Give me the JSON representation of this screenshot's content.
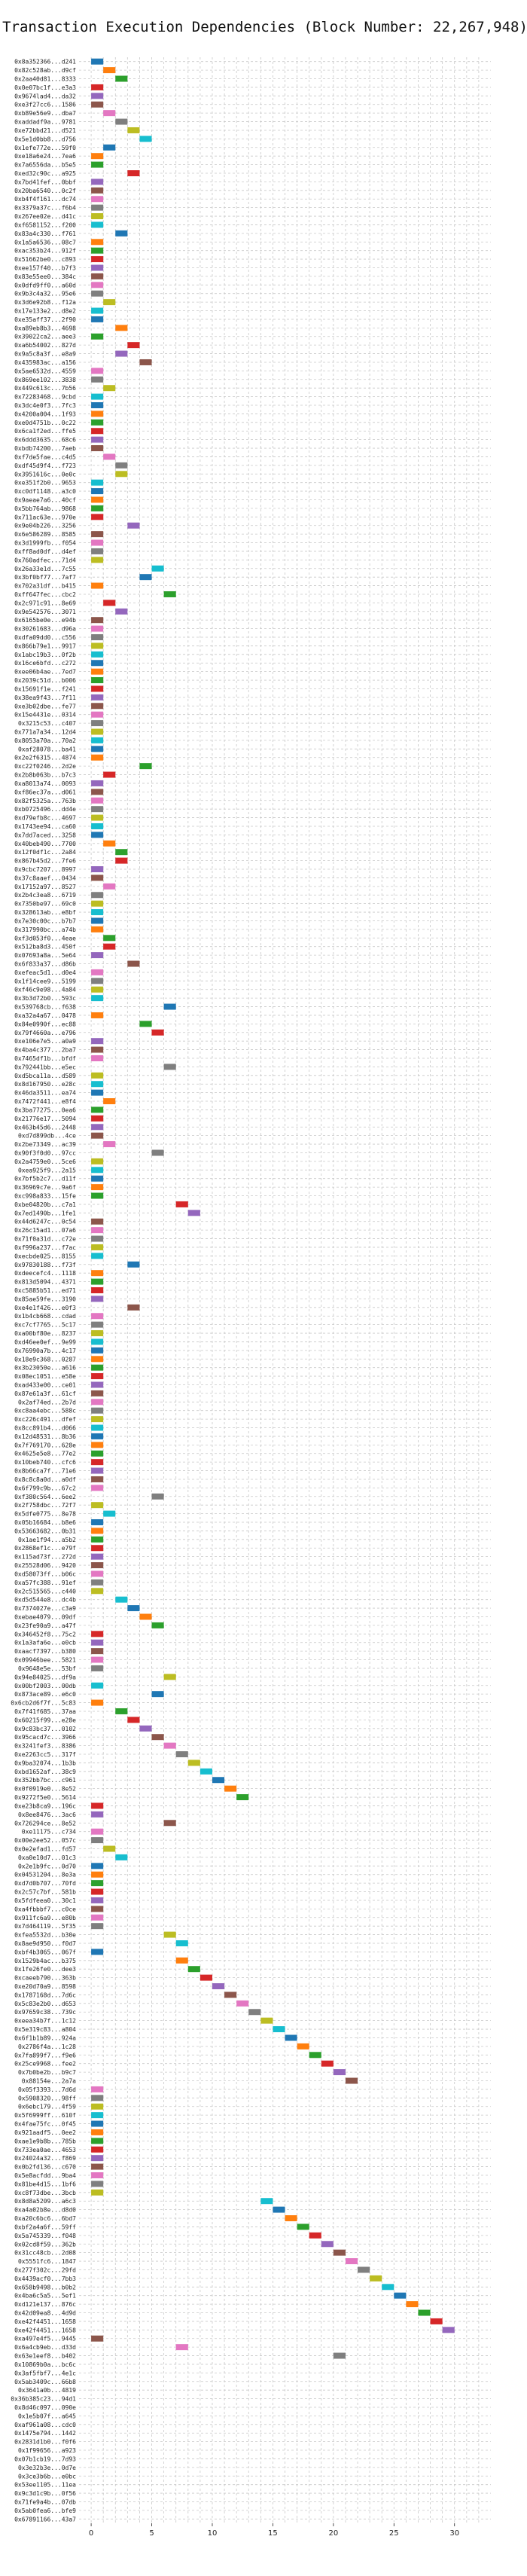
{
  "chart_data": {
    "type": "bar",
    "orientation": "horizontal",
    "title": "Transaction Execution Dependencies (Block Number: 22,267,948)",
    "xlabel": "",
    "ylabel": "",
    "xlim": [
      -1,
      33
    ],
    "xticks": [
      0,
      5,
      10,
      15,
      20,
      25,
      30
    ],
    "grid": true,
    "colors": [
      "#1f77b4",
      "#ff7f0e",
      "#2ca02c",
      "#d62728",
      "#9467bd",
      "#8c564b",
      "#e377c2",
      "#7f7f7f",
      "#bcbd22",
      "#17becf"
    ],
    "categories": [
      "0x8a352366...d241",
      "0x82c528ab...d9cf",
      "0x2aa40d81...8333",
      "0x0e07bc1f...e3a3",
      "0x9674lad4...da32",
      "0xe3f27cc6...1586",
      "0xb89e56e9...dba7",
      "0xaddadf9a...9781",
      "0xe72bbd21...d521",
      "0x5e1d0bb8...d756",
      "0x1efe772e...59f0",
      "0xe18a6e24...7ea6",
      "0x7a6556da...b5e5",
      "0xed32c90c...a925",
      "0x7bd41fef...0bbf",
      "0x20ba6540...0c2f",
      "0xb4f4f161...dc74",
      "0x3379a37c...f6b4",
      "0x267ee02e...d41c",
      "0xf6581152...f200",
      "0x83a4c330...f761",
      "0x1a5a6536...08c7",
      "0xac353b24...912f",
      "0x51662be0...c893",
      "0xee157f40...b7f3",
      "0x83e55ee0...384c",
      "0x0dfd9ff0...a60d",
      "0x9b3c4a32...95e6",
      "0x3d6e92b8...f12a",
      "0x17e133e2...d8e2",
      "0xe35aff37...2f90",
      "0xa89eb8b3...4698",
      "0x39022ca2...aee3",
      "0xa6b54002...827d",
      "0x9a5c8a3f...e8a9",
      "0x435983ac...a156",
      "0x5ae6532d...4559",
      "0x869ee102...3838",
      "0x449c613c...7b56",
      "0x72283468...9cbd",
      "0x3dc4e0f3...7fc3",
      "0x4200a004...1f93",
      "0xe0d4751b...0c22",
      "0x6ca1f2ed...ffe5",
      "0x6ddd3635...68c6",
      "0xbdb74200...7aeb",
      "0xf7de5fae...c4d5",
      "0xdf45d9f4...f723",
      "0x3951616c...0e0c",
      "0xe351f2b0...9653",
      "0xc0df1148...a3c0",
      "0x9aeae7a6...40cf",
      "0x5bb764ab...9868",
      "0x711ac63e...970e",
      "0x9e04b226...3256",
      "0x6e586289...8585",
      "0x3d1999fb...f054",
      "0xff8ad0df...d4ef",
      "0x760adfec...71d4",
      "0x26a33e1d...7c55",
      "0x3bf0bf77...7af7",
      "0x702a31df...b415",
      "0xff647fec...cbc2",
      "0x2c971c91...8e69",
      "0x9e542576...3071",
      "0x6165be0e...e94b",
      "0x30261683...d96a",
      "0xdfa09dd0...c556",
      "0x866b79e1...9917",
      "0x1abc19b3...0f2b",
      "0x16ce6bfd...c272",
      "0xee06b4ae...7ed7",
      "0x2039c51d...b006",
      "0x15691f1e...f241",
      "0x38ea9f43...7f11",
      "0xe3b02dbe...fe77",
      "0x15e4431e...0314",
      "0x3215c53...c407",
      "0x771a7a34...12d4",
      "0x8053a70a...70a2",
      "0xaf28078...ba41",
      "0x2e2f6315...4874",
      "0xc22f0246...2d2e",
      "0x2b8b063b...b7c3",
      "0xa8013a74...0093",
      "0xf86ec37a...d061",
      "0x82f5325a...763b",
      "0xb0725496...dd4e",
      "0xd79efb8c...4697",
      "0x1743ee94...ca60",
      "0x7dd7aced...3258",
      "0x40beb490...7700",
      "0x12f0df1c...2a84",
      "0x867b45d2...7fe6",
      "0x9cbc7207...8997",
      "0x37c8aaef...0434",
      "0x17152a97...8527",
      "0x2b4c3ea8...6719",
      "0x7350be97...69c0",
      "0x328613ab...e8bf",
      "0x7e30c00c...b7b7",
      "0x317990bc...a74b",
      "0xf3d053f0...4eae",
      "0x512ba8d3...450f",
      "0x07693a8a...5e64",
      "0x6f833a37...d86b",
      "0xefeac5d1...d0e4",
      "0x1f14cee9...5199",
      "0xf46c9e98...4a84",
      "0x3b3d72b0...593c",
      "0x539768cb...f638",
      "0xa32a4a67...0478",
      "0x84e0990f...ec88",
      "0x79f4660a...e796",
      "0xe106e7e5...a0a9",
      "0x4ba4c377...2ba7",
      "0x7465df1b...bfdf",
      "0x792441bb...e5ec",
      "0xd5bca11a...d589",
      "0x8d167950...e28c",
      "0x46da3511...ea74",
      "0x7472f441...e8f4",
      "0x3ba77275...0ea6",
      "0x21776e17...5094",
      "0x463b45d6...2448",
      "0xd7d899db...4ce",
      "0x2be73349...ac39",
      "0x90f3f0d0...97cc",
      "0x2a4759e0...5ce6",
      "0xea925f9...2a15",
      "0x7bf5b2c7...d11f",
      "0x36969c7e...9a6f",
      "0xc998a833...15fe",
      "0xbe04820b...c7a1",
      "0x7ed1490b...1fe1",
      "0x44d6247c...0c54",
      "0x26c15ad1...07a6",
      "0x71f0a31d...c72e",
      "0xf996a237...f7ac",
      "0xecbde025...8155",
      "0x97830188...f73f",
      "0xdeecefc4...1118",
      "0x813d5094...4371",
      "0xc5885b51...ed71",
      "0x85ae59fe...3190",
      "0xe4e1f426...e0f3",
      "0x1b4cb668...cdad",
      "0xc7cf7765...5c17",
      "0xa00bf80e...8237",
      "0xd46ee0ef...9e99",
      "0x76990a7b...4c17",
      "0x18e9c368...0287",
      "0x3b23050e...a616",
      "0x08ec1051...e58e",
      "0xad433e00...ce01",
      "0x87e61a3f...61cf",
      "0x2af74ed...2b7d",
      "0xc8aa4ebc...588c",
      "0xc226c491...dfef",
      "0x8cc891b4...d066",
      "0x12d48531...8b36",
      "0x7f769170...628e",
      "0x4625e5e8...77e2",
      "0x10beb740...cfc6",
      "0x8b66ca7f...71e6",
      "0x8c8c8a0d...a0df",
      "0x6f799c9b...67c2",
      "0xf380c564...6ee2",
      "0x2f758dbc...72f7",
      "0x5dfe0775...8e78",
      "0x05b16684...b8e6",
      "0x53663682...0b31",
      "0x1ae1f94...a5b2",
      "0x2868ef1c...e79f",
      "0x115ad73f...272d",
      "0x25528d06...9420",
      "0xd58073ff...b06c",
      "0xa57fc388...91ef",
      "0x2c515565...c440",
      "0xd5d544e8...dc4b",
      "0x7374027e...c3a9",
      "0xebae4079...09df",
      "0x23fe90a9...a47f",
      "0x346452f8...75c2",
      "0x1a3afa6e...e0cb",
      "0xaacf7397...b380",
      "0x09946bee...5821",
      "0x9648e5e...53bf",
      "0x94e84025...df9a",
      "0x00bf2003...00db",
      "0x873ace89...e6c0",
      "0x6cb2d6f7f...5c83",
      "0x7f41f685...37aa",
      "0x60215f99...e28e",
      "0x9c83bc37...0102",
      "0x95cacd7c...3966",
      "0x3241fef3...8386",
      "0xe2263cc5...317f",
      "0x9ba32074...1b3b",
      "0xbd1652af...38c9",
      "0x352bb7bc...c961",
      "0x0f0919e0...8e52",
      "0x9272f5e0...5614",
      "0xe23b8ca9...196c",
      "0x8ee8476...3ac6",
      "0x726294ce...8e52",
      "0xe11175...c734",
      "0x00e2ee52...057c",
      "0x0e2efad1...fd57",
      "0xa0e10d7...01c3",
      "0x2e1b9fc...0d70",
      "0x04531204...8e3a",
      "0xd7d0b707...70fd",
      "0x2c57c7bf...581b",
      "0x5fdfeea0...30c1",
      "0xa4fbbbf7...c0ce",
      "0x911fc6a9...e80b",
      "0x7d464119...5f35",
      "0xfea5532d...b30e",
      "0x8ae9d950...f0d7",
      "0xbf4b3065...067f",
      "0x1529b4ac...b375",
      "0x1fe26fe0...dee3",
      "0xcaeeb790...363b",
      "0xe20d70a9...8598",
      "0x1787168d...7d6c",
      "0x5c83e2b0...d653",
      "0x97659c38...739c",
      "0xeea34b7f...1c12",
      "0x5e319c83...a804",
      "0x6f1b1b89...924a",
      "0x2786f4a...1c28",
      "0x7fa899f7...f9e6",
      "0x25ce9968...fee2",
      "0x7b0be2b...b9c7",
      "0x88154e...2a7a",
      "0x05f3393...7d6d",
      "0x5908320...98ff",
      "0x6ebc179...4f59",
      "0x5f6999ff...610f",
      "0x4fae75fc...0f45",
      "0x921aadf5...0ee2",
      "0xae1e9b8b...785b",
      "0x733ea0ae...4653",
      "0x24024a32...f869",
      "0x0b2fd136...c670",
      "0x5e8acfdd...9ba4",
      "0x81be4d15...1bf6",
      "0xc8f73dbe...3bcb",
      "0x8d8a5209...a6c3",
      "0xa4a02b8e...d8d0",
      "0xa20c6bc6...6bd7",
      "0xbf2a4a6f...59ff",
      "0x5a745339...f048",
      "0x02cd8f59...362b",
      "0x31cc48cb...2d08",
      "0x5551fc6...1847",
      "0x277f302c...29fd",
      "0x4439acf0...7bb3",
      "0x658b9498...b0b2",
      "0x4ba6c5a5...5ef1",
      "0xd121e137...876c",
      "0x42d09ea8...4d9d",
      "0xe42f4451...1658",
      "0xe42f4451...1658",
      "0xa497e4f5...9445",
      "0x6a4cb9eb...d33d",
      "0x63e1eef8...b402",
      "0x10869b0a...bc6c",
      "0x3af5fbf7...4e1c",
      "0x5ab3409c...66b8",
      "0x3641a0b...4819",
      "0x36b385c23...94d1",
      "0x8d46c097...090e",
      "0x1e5b07f...a645",
      "0xaf961a08...cdc0",
      "0x1475e794...1442",
      "0x2831d1b0...f0f6",
      "0x1f99656...a923",
      "0x07b1cb19...7d93",
      "0x3e32b3e...0d7e",
      "0x3ce3b6b...e0bc",
      "0x53ee1105...11ea",
      "0x9c3d1c9b...0f56",
      "0x71fe9a4b...07db",
      "0x5ab0fea6...bfe9",
      "0x67891166...43a7"
    ],
    "bars": [
      [
        0,
        1
      ],
      [
        1,
        1
      ],
      [
        2,
        1
      ],
      [
        0,
        1
      ],
      [
        0,
        1
      ],
      [
        0,
        1
      ],
      [
        1,
        1
      ],
      [
        2,
        1
      ],
      [
        3,
        1
      ],
      [
        4,
        1
      ],
      [
        1,
        1
      ],
      [
        0,
        1
      ],
      [
        0,
        1
      ],
      [
        3,
        1
      ],
      [
        0,
        1
      ],
      [
        0,
        1
      ],
      [
        0,
        1
      ],
      [
        0,
        1
      ],
      [
        0,
        1
      ],
      [
        0,
        1
      ],
      [
        2,
        1
      ],
      [
        0,
        1
      ],
      [
        0,
        1
      ],
      [
        0,
        1
      ],
      [
        0,
        1
      ],
      [
        0,
        1
      ],
      [
        0,
        1
      ],
      [
        0,
        1
      ],
      [
        1,
        1
      ],
      [
        0,
        1
      ],
      [
        0,
        1
      ],
      [
        2,
        1
      ],
      [
        0,
        1
      ],
      [
        3,
        1
      ],
      [
        2,
        1
      ],
      [
        4,
        1
      ],
      [
        0,
        1
      ],
      [
        0,
        1
      ],
      [
        1,
        1
      ],
      [
        0,
        1
      ],
      [
        0,
        1
      ],
      [
        0,
        1
      ],
      [
        0,
        1
      ],
      [
        0,
        1
      ],
      [
        0,
        1
      ],
      [
        0,
        1
      ],
      [
        1,
        1
      ],
      [
        2,
        1
      ],
      [
        2,
        1
      ],
      [
        0,
        1
      ],
      [
        0,
        1
      ],
      [
        0,
        1
      ],
      [
        0,
        1
      ],
      [
        0,
        1
      ],
      [
        3,
        1
      ],
      [
        0,
        1
      ],
      [
        0,
        1
      ],
      [
        0,
        1
      ],
      [
        0,
        1
      ],
      [
        5,
        1
      ],
      [
        4,
        1
      ],
      [
        0,
        1
      ],
      [
        6,
        1
      ],
      [
        1,
        1
      ],
      [
        2,
        1
      ],
      [
        0,
        1
      ],
      [
        0,
        1
      ],
      [
        0,
        1
      ],
      [
        0,
        1
      ],
      [
        0,
        1
      ],
      [
        0,
        1
      ],
      [
        0,
        1
      ],
      [
        0,
        1
      ],
      [
        0,
        1
      ],
      [
        0,
        1
      ],
      [
        0,
        1
      ],
      [
        0,
        1
      ],
      [
        0,
        1
      ],
      [
        0,
        1
      ],
      [
        0,
        1
      ],
      [
        0,
        1
      ],
      [
        0,
        1
      ],
      [
        4,
        1
      ],
      [
        1,
        1
      ],
      [
        0,
        1
      ],
      [
        0,
        1
      ],
      [
        0,
        1
      ],
      [
        0,
        1
      ],
      [
        0,
        1
      ],
      [
        0,
        1
      ],
      [
        0,
        1
      ],
      [
        1,
        1
      ],
      [
        2,
        1
      ],
      [
        2,
        1
      ],
      [
        0,
        1
      ],
      [
        0,
        1
      ],
      [
        1,
        1
      ],
      [
        0,
        1
      ],
      [
        0,
        1
      ],
      [
        0,
        1
      ],
      [
        0,
        1
      ],
      [
        0,
        1
      ],
      [
        1,
        1
      ],
      [
        1,
        1
      ],
      [
        0,
        1
      ],
      [
        3,
        1
      ],
      [
        0,
        1
      ],
      [
        0,
        1
      ],
      [
        0,
        1
      ],
      [
        0,
        1
      ],
      [
        6,
        1
      ],
      [
        0,
        1
      ],
      [
        4,
        1
      ],
      [
        5,
        1
      ],
      [
        0,
        1
      ],
      [
        0,
        1
      ],
      [
        0,
        1
      ],
      [
        6,
        1
      ],
      [
        0,
        1
      ],
      [
        0,
        1
      ],
      [
        0,
        1
      ],
      [
        1,
        1
      ],
      [
        0,
        1
      ],
      [
        0,
        1
      ],
      [
        0,
        1
      ],
      [
        0,
        1
      ],
      [
        1,
        1
      ],
      [
        5,
        1
      ],
      [
        0,
        1
      ],
      [
        0,
        1
      ],
      [
        0,
        1
      ],
      [
        0,
        1
      ],
      [
        0,
        1
      ],
      [
        7,
        1
      ],
      [
        8,
        1
      ],
      [
        0,
        1
      ],
      [
        0,
        1
      ],
      [
        0,
        1
      ],
      [
        0,
        1
      ],
      [
        0,
        1
      ],
      [
        3,
        1
      ],
      [
        0,
        1
      ],
      [
        0,
        1
      ],
      [
        0,
        1
      ],
      [
        0,
        1
      ],
      [
        3,
        1
      ],
      [
        0,
        1
      ],
      [
        0,
        1
      ],
      [
        0,
        1
      ],
      [
        0,
        1
      ],
      [
        0,
        1
      ],
      [
        0,
        1
      ],
      [
        0,
        1
      ],
      [
        0,
        1
      ],
      [
        0,
        1
      ],
      [
        0,
        1
      ],
      [
        0,
        1
      ],
      [
        0,
        1
      ],
      [
        0,
        1
      ],
      [
        0,
        1
      ],
      [
        0,
        1
      ],
      [
        0,
        1
      ],
      [
        0,
        1
      ],
      [
        0,
        1
      ],
      [
        0,
        1
      ],
      [
        0,
        1
      ],
      [
        0,
        1
      ],
      [
        5,
        1
      ],
      [
        0,
        1
      ],
      [
        1,
        1
      ],
      [
        0,
        1
      ],
      [
        0,
        1
      ],
      [
        0,
        1
      ],
      [
        0,
        1
      ],
      [
        0,
        1
      ],
      [
        0,
        1
      ],
      [
        0,
        1
      ],
      [
        0,
        1
      ],
      [
        0,
        1
      ],
      [
        2,
        1
      ],
      [
        3,
        1
      ],
      [
        4,
        1
      ],
      [
        5,
        1
      ],
      [
        0,
        1
      ],
      [
        0,
        1
      ],
      [
        0,
        1
      ],
      [
        0,
        1
      ],
      [
        0,
        1
      ],
      [
        6,
        1
      ],
      [
        0,
        1
      ],
      [
        5,
        1
      ],
      [
        0,
        1
      ],
      [
        2,
        1
      ],
      [
        3,
        1
      ],
      [
        4,
        1
      ],
      [
        5,
        1
      ],
      [
        6,
        1
      ],
      [
        7,
        1
      ],
      [
        8,
        1
      ],
      [
        9,
        1
      ],
      [
        10,
        1
      ],
      [
        11,
        1
      ],
      [
        12,
        1
      ],
      [
        0,
        1
      ],
      [
        0,
        1
      ],
      [
        6,
        1
      ],
      [
        0,
        1
      ],
      [
        0,
        1
      ],
      [
        1,
        1
      ],
      [
        2,
        1
      ],
      [
        0,
        1
      ],
      [
        0,
        1
      ],
      [
        0,
        1
      ],
      [
        0,
        1
      ],
      [
        0,
        1
      ],
      [
        0,
        1
      ],
      [
        0,
        1
      ],
      [
        0,
        1
      ],
      [
        6,
        1
      ],
      [
        7,
        1
      ],
      [
        0,
        1
      ],
      [
        7,
        1
      ],
      [
        8,
        1
      ],
      [
        9,
        1
      ],
      [
        10,
        1
      ],
      [
        11,
        1
      ],
      [
        12,
        1
      ],
      [
        13,
        1
      ],
      [
        14,
        1
      ],
      [
        15,
        1
      ],
      [
        16,
        1
      ],
      [
        17,
        1
      ],
      [
        18,
        1
      ],
      [
        19,
        1
      ],
      [
        20,
        1
      ],
      [
        21,
        1
      ],
      [
        0,
        1
      ],
      [
        0,
        1
      ],
      [
        0,
        1
      ],
      [
        0,
        1
      ],
      [
        0,
        1
      ],
      [
        0,
        1
      ],
      [
        0,
        1
      ],
      [
        0,
        1
      ],
      [
        0,
        1
      ],
      [
        0,
        1
      ],
      [
        0,
        1
      ],
      [
        0,
        1
      ],
      [
        0,
        1
      ],
      [
        14,
        1
      ],
      [
        15,
        1
      ],
      [
        16,
        1
      ],
      [
        17,
        1
      ],
      [
        18,
        1
      ],
      [
        19,
        1
      ],
      [
        20,
        1
      ],
      [
        21,
        1
      ],
      [
        22,
        1
      ],
      [
        23,
        1
      ],
      [
        24,
        1
      ],
      [
        25,
        1
      ],
      [
        26,
        1
      ],
      [
        27,
        1
      ],
      [
        28,
        1
      ],
      [
        29,
        1
      ],
      [
        0,
        1
      ],
      [
        7,
        1
      ],
      [
        20,
        1
      ]
    ]
  }
}
